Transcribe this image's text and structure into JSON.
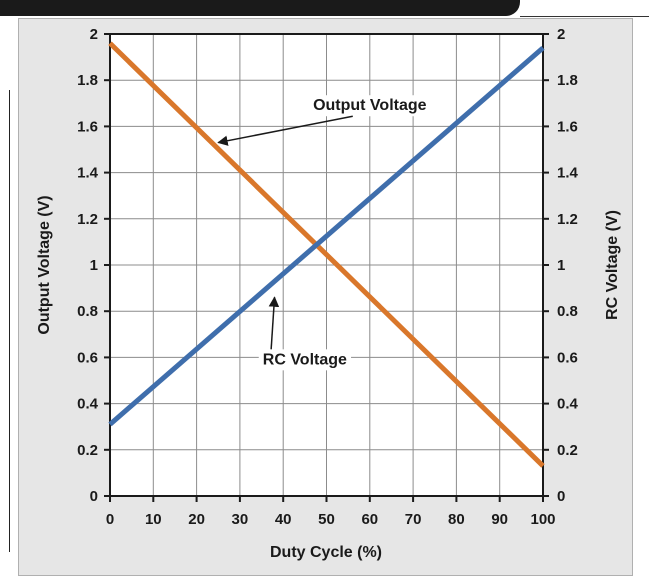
{
  "chart_data": {
    "type": "line",
    "xlabel": "Duty Cycle (%)",
    "ylabel_left": "Output Voltage (V)",
    "ylabel_right": "RC Voltage (V)",
    "xlim": [
      0,
      100
    ],
    "ylim": [
      0,
      2
    ],
    "x_ticks": [
      "0",
      "10",
      "20",
      "30",
      "40",
      "50",
      "60",
      "70",
      "80",
      "90",
      "100"
    ],
    "y_ticks": [
      "0",
      "0.2",
      "0.4",
      "0.6",
      "0.8",
      "1",
      "1.2",
      "1.4",
      "1.6",
      "1.8",
      "2"
    ],
    "grid": true,
    "series": [
      {
        "name": "Output Voltage",
        "x": [
          0,
          100
        ],
        "y": [
          1.96,
          0.13
        ],
        "color": "#d9772b",
        "label_x": 60,
        "label_y": 1.67,
        "arrow_to_x": 25,
        "arrow_to_y": 1.53
      },
      {
        "name": "RC Voltage",
        "x": [
          0,
          100
        ],
        "y": [
          0.31,
          1.94
        ],
        "color": "#3f6eac",
        "label_x": 45,
        "label_y": 0.57,
        "arrow_to_x": 38,
        "arrow_to_y": 0.86
      }
    ]
  }
}
